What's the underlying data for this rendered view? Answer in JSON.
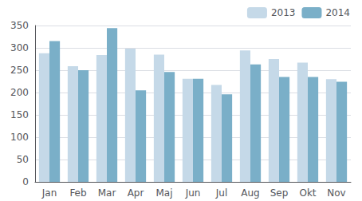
{
  "chart_data": {
    "type": "bar",
    "categories": [
      "Jan",
      "Feb",
      "Mar",
      "Apr",
      "Maj",
      "Jun",
      "Jul",
      "Aug",
      "Sep",
      "Okt",
      "Nov"
    ],
    "series": [
      {
        "name": "2013",
        "color": "#c5d9e8",
        "values": [
          288,
          259,
          284,
          298,
          285,
          231,
          217,
          294,
          275,
          267,
          230
        ]
      },
      {
        "name": "2014",
        "color": "#7aafc8",
        "values": [
          315,
          250,
          344,
          205,
          246,
          231,
          196,
          263,
          235,
          235,
          224
        ]
      }
    ],
    "ylim": [
      0,
      350
    ],
    "yticks": [
      0,
      50,
      100,
      150,
      200,
      250,
      300,
      350
    ],
    "grid": true,
    "legend": "upper right"
  }
}
